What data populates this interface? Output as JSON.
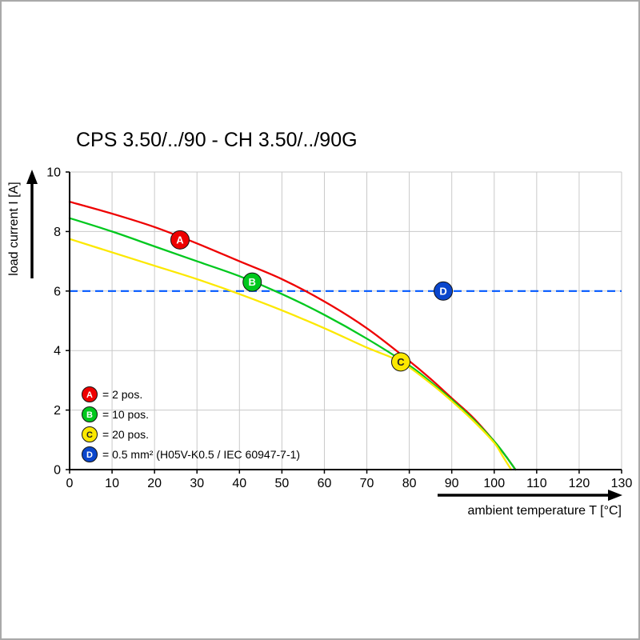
{
  "chart_data": {
    "type": "line",
    "title": "CPS 3.50/../90 - CH 3.50/../90G",
    "xlabel": "ambient temperature T [°C]",
    "ylabel": "load current I [A]",
    "xlim": [
      0,
      130
    ],
    "ylim": [
      0,
      10
    ],
    "xticks": [
      0,
      10,
      20,
      30,
      40,
      50,
      60,
      70,
      80,
      90,
      100,
      110,
      120,
      130
    ],
    "yticks": [
      0,
      2,
      4,
      6,
      8,
      10
    ],
    "grid": true,
    "grid_color": "#c9c9c9",
    "axis_color": "#000000",
    "legend_position": "lower-left",
    "series": [
      {
        "name": "A",
        "legend_label": "= 2 pos.",
        "color": "#ee0000",
        "letter_color": "#ffffff",
        "style": "solid",
        "x": [
          0,
          10,
          20,
          30,
          40,
          50,
          60,
          70,
          80,
          85,
          90,
          95,
          100,
          103,
          105
        ],
        "y": [
          9.0,
          8.6,
          8.15,
          7.6,
          7.0,
          6.4,
          5.65,
          4.75,
          3.65,
          3.05,
          2.4,
          1.75,
          0.95,
          0.4,
          0
        ],
        "marker": {
          "x": 26,
          "y": 7.72
        }
      },
      {
        "name": "B",
        "legend_label": "= 10 pos.",
        "color": "#00c81e",
        "letter_color": "#ffffff",
        "style": "solid",
        "x": [
          0,
          10,
          20,
          30,
          40,
          50,
          60,
          70,
          80,
          85,
          90,
          95,
          100,
          103,
          105
        ],
        "y": [
          8.45,
          8.0,
          7.5,
          7.0,
          6.5,
          5.9,
          5.2,
          4.4,
          3.5,
          2.95,
          2.35,
          1.7,
          0.95,
          0.4,
          0
        ],
        "marker": {
          "x": 43,
          "y": 6.3
        }
      },
      {
        "name": "C",
        "legend_label": "= 20 pos.",
        "color": "#fce800",
        "letter_color": "#222222",
        "style": "solid",
        "x": [
          0,
          10,
          20,
          30,
          40,
          50,
          60,
          70,
          78,
          85,
          90,
          95,
          100,
          102,
          104
        ],
        "y": [
          7.75,
          7.3,
          6.85,
          6.4,
          5.9,
          5.35,
          4.75,
          4.1,
          3.62,
          2.9,
          2.3,
          1.65,
          0.9,
          0.45,
          0
        ],
        "marker": {
          "x": 78,
          "y": 3.62
        }
      },
      {
        "name": "D",
        "legend_label": "= 0.5 mm² (H05V-K0.5 / IEC 60947-7-1)",
        "color": "#0057ff",
        "marker_color": "#0a46cc",
        "letter_color": "#ffffff",
        "style": "dashed",
        "hline": 6,
        "marker": {
          "x": 88,
          "y": 6
        }
      }
    ]
  }
}
